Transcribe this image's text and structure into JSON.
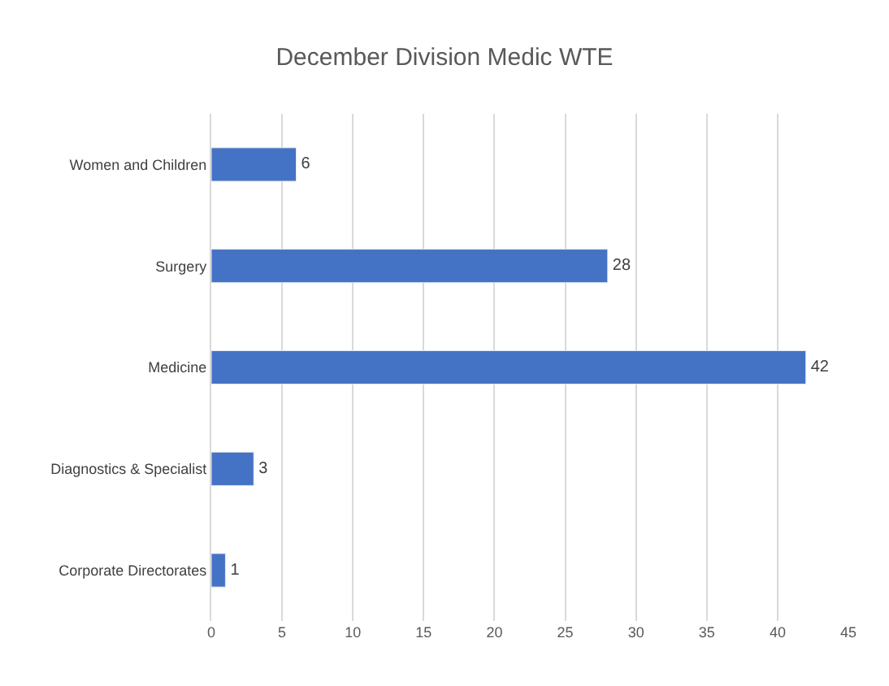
{
  "chart_data": {
    "type": "bar",
    "orientation": "horizontal",
    "title": "December Division Medic WTE",
    "categories": [
      "Women and Children",
      "Surgery",
      "Medicine",
      "Diagnostics & Specialist",
      "Corporate Directorates"
    ],
    "values": [
      6,
      28,
      42,
      3,
      1
    ],
    "color": "#4472c4",
    "xlim": [
      0,
      45
    ],
    "xticks": [
      0,
      5,
      10,
      15,
      20,
      25,
      30,
      35,
      40,
      45
    ],
    "grid": "x",
    "data_labels": true,
    "legend": false
  }
}
